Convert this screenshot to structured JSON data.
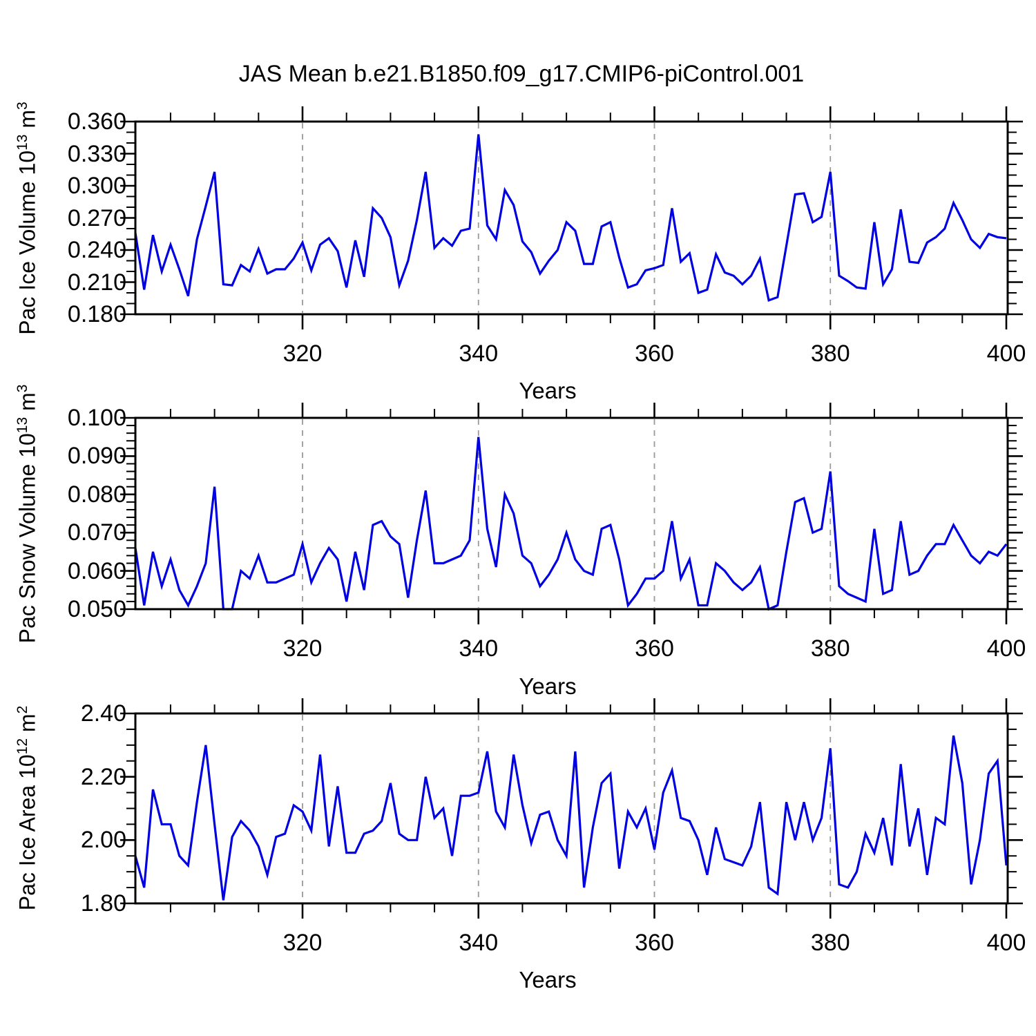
{
  "title": "JAS Mean b.e21.B1850.f09_g17.CMIP6-piControl.001",
  "line_color": "#0000E0",
  "grid_color": "#999999",
  "frame_color": "#000000",
  "years": [
    301,
    302,
    303,
    304,
    305,
    306,
    307,
    308,
    309,
    310,
    311,
    312,
    313,
    314,
    315,
    316,
    317,
    318,
    319,
    320,
    321,
    322,
    323,
    324,
    325,
    326,
    327,
    328,
    329,
    330,
    331,
    332,
    333,
    334,
    335,
    336,
    337,
    338,
    339,
    340,
    341,
    342,
    343,
    344,
    345,
    346,
    347,
    348,
    349,
    350,
    351,
    352,
    353,
    354,
    355,
    356,
    357,
    358,
    359,
    360,
    361,
    362,
    363,
    364,
    365,
    366,
    367,
    368,
    369,
    370,
    371,
    372,
    373,
    374,
    375,
    376,
    377,
    378,
    379,
    380,
    381,
    382,
    383,
    384,
    385,
    386,
    387,
    388,
    389,
    390,
    391,
    392,
    393,
    394,
    395,
    396,
    397,
    398,
    399,
    400
  ],
  "chart_data": [
    {
      "type": "line",
      "name": "pac-ice-volume",
      "ylabel": "Pac Ice Volume 10^13 m^3",
      "ylabel_text": "Pac Ice Volume 10",
      "ylabel_sup1": "13",
      "ylabel_unit": " m",
      "ylabel_sup2": "3",
      "xlabel": "Years",
      "xlim": [
        301,
        400
      ],
      "ylim": [
        0.18,
        0.36
      ],
      "y_major_ticks": [
        0.36,
        0.33,
        0.3,
        0.27,
        0.24,
        0.21,
        0.18
      ],
      "y_tick_labels": [
        "0.360",
        "0.330",
        "0.300",
        "0.270",
        "0.240",
        "0.210",
        "0.180"
      ],
      "y_minor_step": 0.01,
      "x_major_ticks": [
        320,
        340,
        360,
        380,
        400
      ],
      "x_tick_labels": [
        "320",
        "340",
        "360",
        "380",
        "400"
      ],
      "x_minor_step": 5,
      "x_gridlines": [
        320,
        340,
        360,
        380
      ],
      "grid": "dashed-vertical",
      "legend": "none",
      "values": [
        0.256,
        0.203,
        0.254,
        0.22,
        0.245,
        0.222,
        0.197,
        0.25,
        0.281,
        0.313,
        0.208,
        0.207,
        0.226,
        0.22,
        0.241,
        0.218,
        0.222,
        0.222,
        0.232,
        0.247,
        0.221,
        0.245,
        0.251,
        0.239,
        0.205,
        0.249,
        0.215,
        0.279,
        0.27,
        0.252,
        0.207,
        0.23,
        0.268,
        0.313,
        0.242,
        0.251,
        0.244,
        0.258,
        0.26,
        0.348,
        0.263,
        0.25,
        0.296,
        0.282,
        0.248,
        0.238,
        0.218,
        0.23,
        0.24,
        0.266,
        0.258,
        0.227,
        0.227,
        0.262,
        0.266,
        0.233,
        0.205,
        0.208,
        0.221,
        0.223,
        0.226,
        0.279,
        0.229,
        0.237,
        0.2,
        0.203,
        0.236,
        0.219,
        0.216,
        0.208,
        0.216,
        0.232,
        0.193,
        0.196,
        0.244,
        0.292,
        0.293,
        0.266,
        0.271,
        0.313,
        0.216,
        0.211,
        0.205,
        0.204,
        0.266,
        0.208,
        0.222,
        0.278,
        0.229,
        0.228,
        0.247,
        0.252,
        0.26,
        0.284,
        0.268,
        0.25,
        0.242,
        0.255,
        0.252,
        0.251
      ]
    },
    {
      "type": "line",
      "name": "pac-snow-volume",
      "ylabel": "Pac Snow Volume 10^13 m^3",
      "ylabel_text": "Pac Snow Volume 10",
      "ylabel_sup1": "13",
      "ylabel_unit": " m",
      "ylabel_sup2": "3",
      "xlabel": "Years",
      "xlim": [
        301,
        400
      ],
      "ylim": [
        0.05,
        0.1
      ],
      "y_major_ticks": [
        0.1,
        0.09,
        0.08,
        0.07,
        0.06,
        0.05
      ],
      "y_tick_labels": [
        "0.100",
        "0.090",
        "0.080",
        "0.070",
        "0.060",
        "0.050"
      ],
      "y_minor_step": 0.002,
      "x_major_ticks": [
        320,
        340,
        360,
        380,
        400
      ],
      "x_tick_labels": [
        "320",
        "340",
        "360",
        "380",
        "400"
      ],
      "x_minor_step": 5,
      "x_gridlines": [
        320,
        340,
        360,
        380
      ],
      "grid": "dashed-vertical",
      "legend": "none",
      "values": [
        0.066,
        0.051,
        0.065,
        0.056,
        0.063,
        0.055,
        0.051,
        0.056,
        0.062,
        0.082,
        0.05,
        0.05,
        0.06,
        0.058,
        0.064,
        0.057,
        0.057,
        0.058,
        0.059,
        0.067,
        0.057,
        0.062,
        0.066,
        0.063,
        0.052,
        0.065,
        0.055,
        0.072,
        0.073,
        0.069,
        0.067,
        0.053,
        0.068,
        0.081,
        0.062,
        0.062,
        0.063,
        0.064,
        0.068,
        0.095,
        0.071,
        0.061,
        0.08,
        0.075,
        0.064,
        0.062,
        0.056,
        0.059,
        0.063,
        0.07,
        0.063,
        0.06,
        0.059,
        0.071,
        0.072,
        0.063,
        0.051,
        0.054,
        0.058,
        0.058,
        0.06,
        0.073,
        0.058,
        0.063,
        0.051,
        0.051,
        0.062,
        0.06,
        0.057,
        0.055,
        0.057,
        0.061,
        0.05,
        0.051,
        0.065,
        0.078,
        0.079,
        0.07,
        0.071,
        0.086,
        0.056,
        0.054,
        0.053,
        0.052,
        0.071,
        0.054,
        0.055,
        0.073,
        0.059,
        0.06,
        0.064,
        0.067,
        0.067,
        0.072,
        0.068,
        0.064,
        0.062,
        0.065,
        0.064,
        0.067
      ]
    },
    {
      "type": "line",
      "name": "pac-ice-area",
      "ylabel": "Pac Ice Area 10^12 m^2",
      "ylabel_text": "Pac Ice Area 10",
      "ylabel_sup1": "12",
      "ylabel_unit": " m",
      "ylabel_sup2": "2",
      "xlabel": "Years",
      "xlim": [
        301,
        400
      ],
      "ylim": [
        1.8,
        2.4
      ],
      "y_major_ticks": [
        2.4,
        2.2,
        2.0,
        1.8
      ],
      "y_tick_labels": [
        "2.40",
        "2.20",
        "2.00",
        "1.80"
      ],
      "y_minor_step": 0.05,
      "x_major_ticks": [
        320,
        340,
        360,
        380,
        400
      ],
      "x_tick_labels": [
        "320",
        "340",
        "360",
        "380",
        "400"
      ],
      "x_minor_step": 5,
      "x_gridlines": [
        320,
        340,
        360,
        380
      ],
      "grid": "dashed-vertical",
      "legend": "none",
      "values": [
        1.95,
        1.85,
        2.16,
        2.05,
        2.05,
        1.95,
        1.92,
        2.12,
        2.3,
        2.05,
        1.81,
        2.01,
        2.06,
        2.03,
        1.98,
        1.89,
        2.01,
        2.02,
        2.11,
        2.09,
        2.03,
        2.27,
        1.98,
        2.17,
        1.96,
        1.96,
        2.02,
        2.03,
        2.06,
        2.18,
        2.02,
        2.0,
        2.0,
        2.2,
        2.07,
        2.1,
        1.95,
        2.14,
        2.14,
        2.15,
        2.28,
        2.09,
        2.04,
        2.27,
        2.11,
        1.99,
        2.08,
        2.09,
        2.0,
        1.95,
        2.28,
        1.85,
        2.04,
        2.18,
        2.21,
        1.91,
        2.09,
        2.04,
        2.1,
        1.97,
        2.15,
        2.22,
        2.07,
        2.06,
        2.0,
        1.89,
        2.04,
        1.94,
        1.93,
        1.92,
        1.98,
        2.12,
        1.85,
        1.83,
        2.12,
        2.0,
        2.12,
        2.0,
        2.07,
        2.29,
        1.86,
        1.85,
        1.9,
        2.02,
        1.96,
        2.07,
        1.92,
        2.24,
        1.98,
        2.1,
        1.89,
        2.07,
        2.05,
        2.33,
        2.18,
        1.86,
        2.0,
        2.21,
        2.25,
        1.92
      ]
    }
  ]
}
